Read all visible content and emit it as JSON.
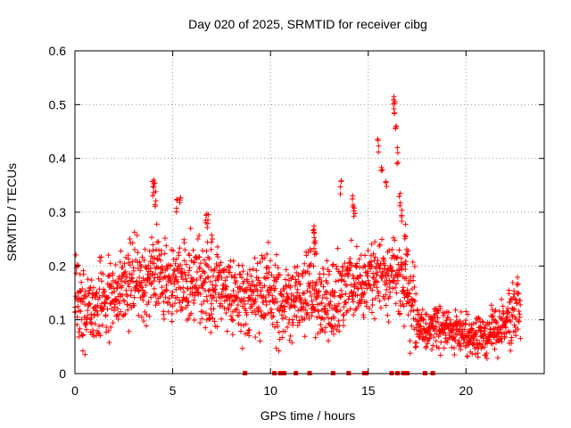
{
  "chart_data": {
    "type": "scatter",
    "title": "Day 020 of 2025, SRMTID for receiver cibg",
    "xlabel": "GPS time / hours",
    "ylabel": "SRMTID / TECUs",
    "xlim": [
      0,
      24
    ],
    "ylim": [
      0,
      0.6
    ],
    "xticks": [
      0,
      5,
      10,
      15,
      20
    ],
    "xtick_labels": [
      "0",
      "5",
      "10",
      "15",
      "20"
    ],
    "yticks": [
      0,
      0.1,
      0.2,
      0.3,
      0.4,
      0.5,
      0.6
    ],
    "ytick_labels": [
      "0",
      "0.1",
      "0.2",
      "0.3",
      "0.4",
      "0.5",
      "0.6"
    ],
    "grid": true,
    "marker": "plus",
    "color": "#ff0000",
    "series": [
      {
        "name": "SRMTID",
        "trend": [
          [
            0.0,
            0.15
          ],
          [
            0.5,
            0.12
          ],
          [
            1.0,
            0.12
          ],
          [
            1.5,
            0.14
          ],
          [
            2.0,
            0.15
          ],
          [
            2.5,
            0.16
          ],
          [
            3.0,
            0.17
          ],
          [
            3.5,
            0.16
          ],
          [
            4.0,
            0.19
          ],
          [
            4.5,
            0.18
          ],
          [
            5.0,
            0.17
          ],
          [
            5.5,
            0.18
          ],
          [
            6.0,
            0.17
          ],
          [
            6.5,
            0.18
          ],
          [
            7.0,
            0.16
          ],
          [
            7.5,
            0.15
          ],
          [
            8.0,
            0.14
          ],
          [
            8.5,
            0.13
          ],
          [
            9.0,
            0.14
          ],
          [
            9.5,
            0.15
          ],
          [
            10.0,
            0.16
          ],
          [
            10.5,
            0.13
          ],
          [
            11.0,
            0.13
          ],
          [
            11.5,
            0.14
          ],
          [
            12.0,
            0.16
          ],
          [
            12.5,
            0.14
          ],
          [
            13.0,
            0.13
          ],
          [
            13.5,
            0.15
          ],
          [
            14.0,
            0.17
          ],
          [
            14.5,
            0.17
          ],
          [
            15.0,
            0.17
          ],
          [
            15.5,
            0.18
          ],
          [
            16.0,
            0.18
          ],
          [
            16.5,
            0.2
          ],
          [
            17.0,
            0.15
          ],
          [
            17.5,
            0.1
          ],
          [
            18.0,
            0.08
          ],
          [
            18.5,
            0.09
          ],
          [
            19.0,
            0.08
          ],
          [
            19.5,
            0.08
          ],
          [
            20.0,
            0.07
          ],
          [
            20.5,
            0.07
          ],
          [
            21.0,
            0.07
          ],
          [
            21.5,
            0.08
          ],
          [
            22.0,
            0.09
          ],
          [
            22.5,
            0.12
          ],
          [
            22.8,
            0.13
          ]
        ],
        "spikes": [
          [
            4.0,
            0.36
          ],
          [
            4.05,
            0.37
          ],
          [
            4.1,
            0.34
          ],
          [
            5.2,
            0.33
          ],
          [
            5.4,
            0.34
          ],
          [
            6.7,
            0.31
          ],
          [
            6.8,
            0.3
          ],
          [
            7.0,
            0.26
          ],
          [
            12.2,
            0.28
          ],
          [
            12.25,
            0.27
          ],
          [
            12.3,
            0.25
          ],
          [
            13.6,
            0.36
          ],
          [
            14.2,
            0.34
          ],
          [
            14.3,
            0.32
          ],
          [
            15.5,
            0.44
          ],
          [
            15.7,
            0.39
          ],
          [
            15.9,
            0.37
          ],
          [
            16.3,
            0.52
          ],
          [
            16.35,
            0.51
          ],
          [
            16.4,
            0.48
          ],
          [
            16.5,
            0.42
          ],
          [
            16.6,
            0.34
          ],
          [
            16.7,
            0.31
          ],
          [
            16.9,
            0.28
          ],
          [
            17.0,
            0.25
          ]
        ],
        "zero_points": [
          8.7,
          10.2,
          10.5,
          10.7,
          11.3,
          12.0,
          13.2,
          14.0,
          14.8,
          14.9,
          16.2,
          16.5,
          16.8,
          17.0,
          17.9,
          18.3
        ]
      }
    ]
  }
}
